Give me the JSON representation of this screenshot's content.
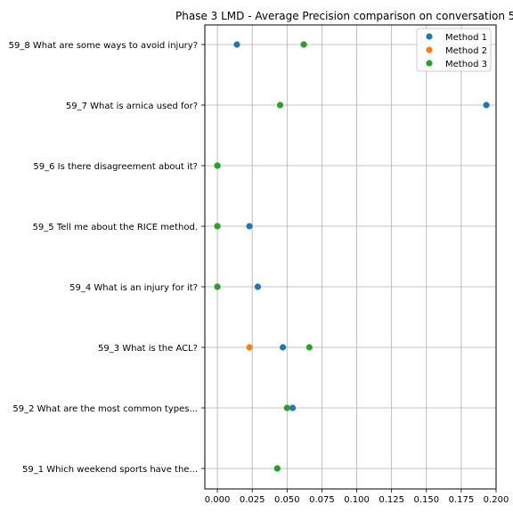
{
  "chart_data": {
    "type": "scatter",
    "title": "Phase 3 LMD - Average Precision comparison on conversation 5",
    "xlabel": "",
    "ylabel": "",
    "xlim": [
      -0.009,
      0.2
    ],
    "x_ticks": [
      0.0,
      0.025,
      0.05,
      0.075,
      0.1,
      0.125,
      0.15,
      0.175,
      0.2
    ],
    "x_tick_labels": [
      "0.000",
      "0.025",
      "0.050",
      "0.075",
      "0.100",
      "0.125",
      "0.150",
      "0.175",
      "0.200"
    ],
    "categories": [
      "59_8 What are some ways to avoid injury?",
      "59_7 What is arnica used for?",
      "59_6 Is there disagreement about it?",
      "59_5 Tell me about the RICE method.",
      "59_4 What is an injury for it?",
      "59_3 What is the ACL?",
      "59_2 What are the most common types...",
      "59_1 Which weekend sports have the..."
    ],
    "series": [
      {
        "name": "Method 1",
        "color": "#1f77b4",
        "values": [
          0.014,
          0.193,
          0.0,
          0.023,
          0.029,
          0.047,
          0.054,
          0.043
        ]
      },
      {
        "name": "Method 2",
        "color": "#ff7f0e",
        "values": [
          0.062,
          0.045,
          0.0,
          0.0,
          0.0,
          0.023,
          0.05,
          0.043
        ]
      },
      {
        "name": "Method 3",
        "color": "#2ca02c",
        "values": [
          0.062,
          0.045,
          0.0,
          0.0,
          0.0,
          0.066,
          0.05,
          0.043
        ]
      }
    ],
    "grid": true,
    "legend_position": "top-right"
  }
}
